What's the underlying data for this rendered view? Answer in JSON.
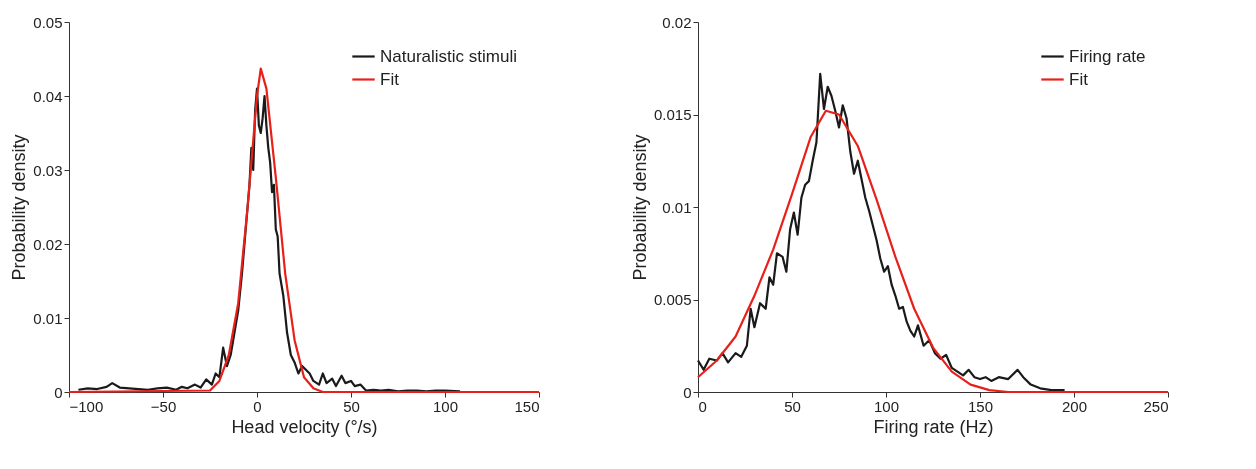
{
  "chart_data": [
    {
      "type": "line",
      "xlabel": "Head velocity (°/s)",
      "ylabel": "Probability density",
      "xlim": [
        -100,
        150
      ],
      "ylim": [
        0,
        0.05
      ],
      "xticks": [
        -100,
        -50,
        0,
        50,
        100,
        150
      ],
      "yticks": [
        0,
        0.01,
        0.02,
        0.03,
        0.04,
        0.05
      ],
      "grid": false,
      "legend": "top right",
      "line_style": "solid",
      "marker": "none",
      "series": [
        {
          "name": "Naturalistic stimuli",
          "color": "#1a1a1a",
          "x": [
            -95,
            -90,
            -85,
            -80,
            -77,
            -73,
            -68,
            -63,
            -58,
            -53,
            -48,
            -43,
            -40,
            -37,
            -33,
            -30,
            -27,
            -24,
            -22,
            -20,
            -18,
            -16,
            -14,
            -12,
            -10,
            -8,
            -6,
            -4,
            -3,
            -2,
            -1,
            0,
            1,
            2,
            3,
            4,
            5,
            6,
            7,
            8,
            9,
            10,
            11,
            12,
            14,
            16,
            18,
            20,
            22,
            24,
            26,
            28,
            30,
            33,
            35,
            37,
            40,
            42,
            45,
            47,
            50,
            52,
            55,
            58,
            62,
            66,
            70,
            75,
            80,
            85,
            90,
            95,
            100,
            108
          ],
          "values": [
            0.0003,
            0.0005,
            0.0004,
            0.0007,
            0.0012,
            0.0006,
            0.0005,
            0.0004,
            0.0003,
            0.0005,
            0.0006,
            0.0003,
            0.0007,
            0.0005,
            0.001,
            0.0006,
            0.0017,
            0.001,
            0.0025,
            0.002,
            0.006,
            0.0035,
            0.005,
            0.008,
            0.011,
            0.016,
            0.022,
            0.028,
            0.033,
            0.03,
            0.038,
            0.041,
            0.036,
            0.035,
            0.037,
            0.04,
            0.036,
            0.033,
            0.031,
            0.027,
            0.028,
            0.022,
            0.021,
            0.016,
            0.013,
            0.008,
            0.005,
            0.004,
            0.0025,
            0.0035,
            0.003,
            0.0025,
            0.0015,
            0.001,
            0.0025,
            0.0012,
            0.0018,
            0.0008,
            0.0022,
            0.0012,
            0.0015,
            0.0008,
            0.001,
            0.0002,
            0.0003,
            0.0002,
            0.0003,
            0.0001,
            0.0002,
            0.0002,
            0.0001,
            0.0002,
            0.0002,
            0.0001
          ]
        },
        {
          "name": "Fit",
          "color": "#e8201a",
          "x": [
            -100,
            -25,
            -20,
            -15,
            -10,
            -5,
            0,
            2,
            5,
            10,
            15,
            20,
            25,
            30,
            35,
            150
          ],
          "values": [
            0,
            0.0002,
            0.0015,
            0.005,
            0.012,
            0.025,
            0.04,
            0.0437,
            0.041,
            0.029,
            0.016,
            0.007,
            0.002,
            0.0005,
            0,
            0
          ]
        }
      ]
    },
    {
      "type": "line",
      "xlabel": "Firing rate (Hz)",
      "ylabel": "Probability density",
      "xlim": [
        0,
        250
      ],
      "ylim": [
        0,
        0.02
      ],
      "xticks": [
        0,
        50,
        100,
        150,
        200,
        250
      ],
      "yticks": [
        0,
        0.005,
        0.01,
        0.015,
        0.02
      ],
      "grid": false,
      "legend": "top right",
      "line_style": "solid",
      "marker": "none",
      "series": [
        {
          "name": "Firing rate",
          "color": "#1a1a1a",
          "x": [
            0,
            3,
            6,
            10,
            13,
            16,
            20,
            23,
            26,
            28,
            30,
            33,
            36,
            38,
            40,
            42,
            45,
            47,
            49,
            51,
            53,
            55,
            57,
            59,
            61,
            63,
            65,
            67,
            69,
            71,
            73,
            75,
            77,
            79,
            81,
            83,
            85,
            87,
            89,
            91,
            93,
            95,
            97,
            99,
            101,
            103,
            105,
            107,
            109,
            111,
            113,
            115,
            117,
            120,
            123,
            126,
            129,
            132,
            135,
            138,
            141,
            144,
            147,
            150,
            153,
            156,
            160,
            165,
            170,
            173,
            177,
            182,
            188,
            195
          ],
          "values": [
            0.0017,
            0.0012,
            0.0018,
            0.0017,
            0.0021,
            0.0016,
            0.0021,
            0.0019,
            0.0025,
            0.0045,
            0.0035,
            0.0048,
            0.0045,
            0.0062,
            0.0058,
            0.0075,
            0.0073,
            0.0065,
            0.0088,
            0.0097,
            0.0085,
            0.0105,
            0.0112,
            0.0114,
            0.0125,
            0.0135,
            0.0172,
            0.0153,
            0.0165,
            0.016,
            0.0152,
            0.0143,
            0.0155,
            0.0148,
            0.013,
            0.0118,
            0.0125,
            0.0115,
            0.0105,
            0.0098,
            0.009,
            0.0082,
            0.0072,
            0.0065,
            0.0068,
            0.0058,
            0.0052,
            0.0045,
            0.0046,
            0.0038,
            0.0033,
            0.003,
            0.0036,
            0.0025,
            0.0028,
            0.0021,
            0.0018,
            0.002,
            0.0013,
            0.0011,
            0.0009,
            0.0012,
            0.0008,
            0.0007,
            0.0008,
            0.0006,
            0.0008,
            0.0007,
            0.0012,
            0.0008,
            0.0004,
            0.0002,
            0.0001,
            0.0001
          ]
        },
        {
          "name": "Fit",
          "color": "#e8201a",
          "x": [
            0,
            10,
            20,
            30,
            40,
            50,
            60,
            68,
            75,
            85,
            95,
            105,
            115,
            125,
            135,
            145,
            155,
            165,
            250
          ],
          "values": [
            0.0008,
            0.0017,
            0.003,
            0.0052,
            0.0077,
            0.0107,
            0.0138,
            0.0152,
            0.015,
            0.0133,
            0.0104,
            0.0073,
            0.0045,
            0.0024,
            0.0011,
            0.0004,
            0.0001,
            0,
            0
          ]
        }
      ]
    }
  ]
}
